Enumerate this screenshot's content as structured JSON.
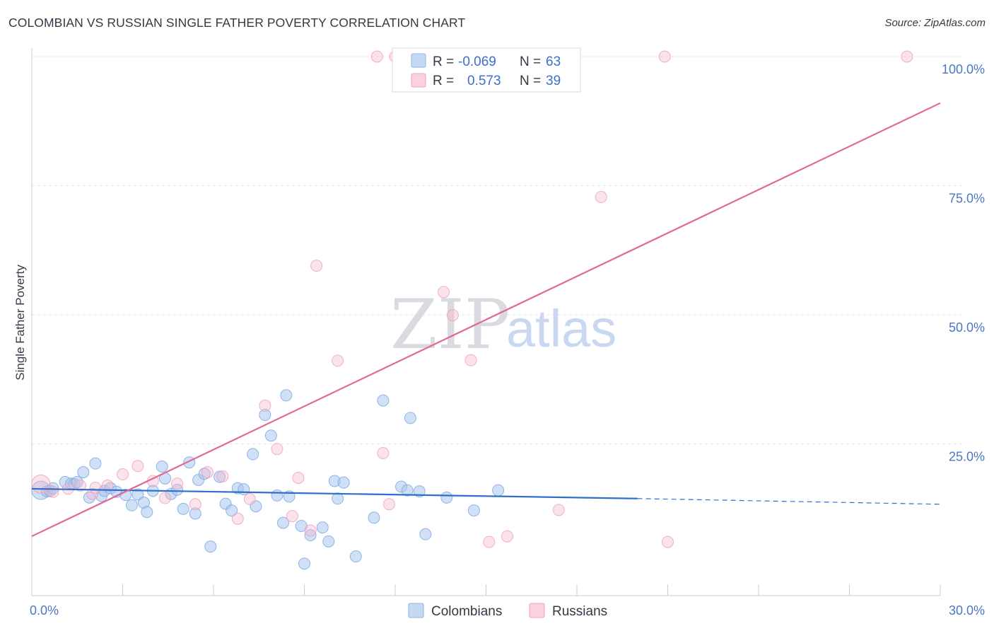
{
  "title": "COLOMBIAN VS RUSSIAN SINGLE FATHER POVERTY CORRELATION CHART",
  "source": "Source: ZipAtlas.com",
  "watermark": {
    "zip": "ZIP",
    "atlas": "atlas"
  },
  "legend": {
    "rows": [
      {
        "r_label": "R =",
        "r_value": "-0.069",
        "n_label": "N =",
        "n_value": "63",
        "color": "#a9c7ef"
      },
      {
        "r_label": "R =",
        "r_value": "0.573",
        "n_label": "N =",
        "n_value": "39",
        "color": "#f5b8cc"
      }
    ]
  },
  "bottom_legend": [
    {
      "label": "Colombians",
      "color": "#a9c7ef"
    },
    {
      "label": "Russians",
      "color": "#f5b8cc"
    }
  ],
  "chart_data": {
    "type": "scatter",
    "title": "COLOMBIAN VS RUSSIAN SINGLE FATHER POVERTY CORRELATION CHART",
    "xlabel": "",
    "ylabel": "Single Father Poverty",
    "xlim": [
      0,
      30
    ],
    "ylim": [
      0,
      100
    ],
    "x_tick_labels": [
      "0.0%",
      "30.0%"
    ],
    "y_ticks": [
      25,
      50,
      75,
      100
    ],
    "y_tick_labels": [
      "25.0%",
      "50.0%",
      "75.0%",
      "100.0%"
    ],
    "grid": true,
    "series": [
      {
        "name": "Colombians",
        "color": "#a9c7ef",
        "line_color": "#2f6fcc",
        "trend": {
          "x0": 0,
          "y0": 16.3,
          "x1": 20,
          "y1": 14.4,
          "dash_to_x": 30,
          "dash_to_y": 13.3
        },
        "points": [
          [
            0.3,
            16
          ],
          [
            0.5,
            15.8
          ],
          [
            0.6,
            15.9
          ],
          [
            0.7,
            16.4
          ],
          [
            1.1,
            17.6
          ],
          [
            1.3,
            17.3
          ],
          [
            1.4,
            17.2
          ],
          [
            1.5,
            17.6
          ],
          [
            1.7,
            19.5
          ],
          [
            1.9,
            14.6
          ],
          [
            2.1,
            21.2
          ],
          [
            2.3,
            14.9
          ],
          [
            2.4,
            15.9
          ],
          [
            2.6,
            16.4
          ],
          [
            2.8,
            15.7
          ],
          [
            3.1,
            15.1
          ],
          [
            3.3,
            13.1
          ],
          [
            3.5,
            15.2
          ],
          [
            3.7,
            13.6
          ],
          [
            3.8,
            11.8
          ],
          [
            4.0,
            15.9
          ],
          [
            4.3,
            20.6
          ],
          [
            4.4,
            18.3
          ],
          [
            4.6,
            15.3
          ],
          [
            4.8,
            16.1
          ],
          [
            5.0,
            12.4
          ],
          [
            5.2,
            21.4
          ],
          [
            5.4,
            11.5
          ],
          [
            5.5,
            18.0
          ],
          [
            5.7,
            19.2
          ],
          [
            5.9,
            5.1
          ],
          [
            6.2,
            18.6
          ],
          [
            6.4,
            13.4
          ],
          [
            6.6,
            12.1
          ],
          [
            6.8,
            16.4
          ],
          [
            7.0,
            16.2
          ],
          [
            7.3,
            23.0
          ],
          [
            7.4,
            12.9
          ],
          [
            7.7,
            30.6
          ],
          [
            7.9,
            26.6
          ],
          [
            8.1,
            15.0
          ],
          [
            8.3,
            9.7
          ],
          [
            8.4,
            34.4
          ],
          [
            8.5,
            14.8
          ],
          [
            8.9,
            9.1
          ],
          [
            9.0,
            1.8
          ],
          [
            9.2,
            7.3
          ],
          [
            9.6,
            8.8
          ],
          [
            9.8,
            6.1
          ],
          [
            10.0,
            17.8
          ],
          [
            10.1,
            14.4
          ],
          [
            10.3,
            17.5
          ],
          [
            10.7,
            3.2
          ],
          [
            11.3,
            10.7
          ],
          [
            11.6,
            33.4
          ],
          [
            12.2,
            16.7
          ],
          [
            12.4,
            16.0
          ],
          [
            12.5,
            30.0
          ],
          [
            12.8,
            15.8
          ],
          [
            13.0,
            7.5
          ],
          [
            13.7,
            14.6
          ],
          [
            14.6,
            12.1
          ],
          [
            15.4,
            16.0
          ]
        ]
      },
      {
        "name": "Russians",
        "color": "#f5b8cc",
        "line_color": "#e06a95",
        "trend": {
          "x0": 0,
          "y0": 7.1,
          "x1": 30,
          "y1": 91.0
        },
        "points": [
          [
            0.3,
            17.2
          ],
          [
            0.7,
            15.7
          ],
          [
            1.2,
            16.3
          ],
          [
            1.6,
            16.9
          ],
          [
            2.0,
            15.3
          ],
          [
            2.1,
            16.5
          ],
          [
            2.5,
            16.9
          ],
          [
            3.0,
            19.1
          ],
          [
            3.5,
            20.7
          ],
          [
            4.0,
            17.8
          ],
          [
            4.4,
            14.5
          ],
          [
            4.8,
            17.3
          ],
          [
            5.4,
            13.3
          ],
          [
            5.8,
            19.5
          ],
          [
            6.3,
            18.7
          ],
          [
            6.8,
            10.5
          ],
          [
            7.2,
            14.3
          ],
          [
            7.7,
            32.4
          ],
          [
            8.1,
            24.0
          ],
          [
            8.6,
            11.0
          ],
          [
            8.8,
            18.4
          ],
          [
            9.2,
            8.2
          ],
          [
            9.4,
            59.5
          ],
          [
            10.1,
            41.1
          ],
          [
            11.4,
            100
          ],
          [
            11.6,
            23.2
          ],
          [
            11.8,
            13.3
          ],
          [
            12.0,
            100
          ],
          [
            13.6,
            54.4
          ],
          [
            13.9,
            49.9
          ],
          [
            14.5,
            41.2
          ],
          [
            15.1,
            6.0
          ],
          [
            15.7,
            7.1
          ],
          [
            17.4,
            100
          ],
          [
            17.4,
            12.2
          ],
          [
            18.8,
            72.8
          ],
          [
            20.9,
            100
          ],
          [
            21.0,
            6.0
          ],
          [
            28.9,
            100
          ]
        ]
      }
    ]
  }
}
